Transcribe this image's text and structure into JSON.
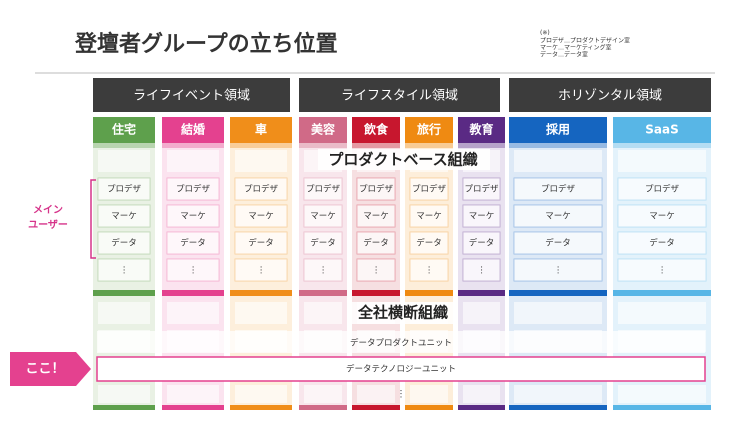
{
  "header": {
    "title": "登壇者グループの立ち位置"
  },
  "note": {
    "mark": "(※)",
    "lines": [
      "プロデザ…プロダクトデザイン室",
      "マーケ…マーケティング室",
      "データ…データ室"
    ]
  },
  "domains": [
    "ライフイベント領域",
    "ライフスタイル領域",
    "ホリゾンタル領域"
  ],
  "columns": [
    {
      "label": "住宅",
      "color": "#5ea04c",
      "tint": "#e9f1e4"
    },
    {
      "label": "結婚",
      "color": "#e4418f",
      "tint": "#fbe3ef"
    },
    {
      "label": "車",
      "color": "#f08e1a",
      "tint": "#fdefdc"
    },
    {
      "label": "美容",
      "color": "#d06a87",
      "tint": "#f8e6ec"
    },
    {
      "label": "飲食",
      "color": "#c7172e",
      "tint": "#f6dfe1"
    },
    {
      "label": "旅行",
      "color": "#ef8a12",
      "tint": "#fdeeda"
    },
    {
      "label": "教育",
      "color": "#5a2a84",
      "tint": "#e9e2f0"
    },
    {
      "label": "採用",
      "color": "#1565c0",
      "tint": "#dde9f6"
    },
    {
      "label": "SaaS",
      "color": "#58b6e6",
      "tint": "#e3f2fb"
    }
  ],
  "product_band": "プロダクトベース組織",
  "roles": [
    "プロデザ",
    "マーケ",
    "データ",
    "⋮"
  ],
  "cross_band": "全社横断組織",
  "cross_units": [
    "データプロダクトユニット",
    "データテクノロジーユニット",
    "⋮"
  ],
  "main_user": [
    "メイン",
    "ユーザー"
  ],
  "pointer": "ここ！"
}
